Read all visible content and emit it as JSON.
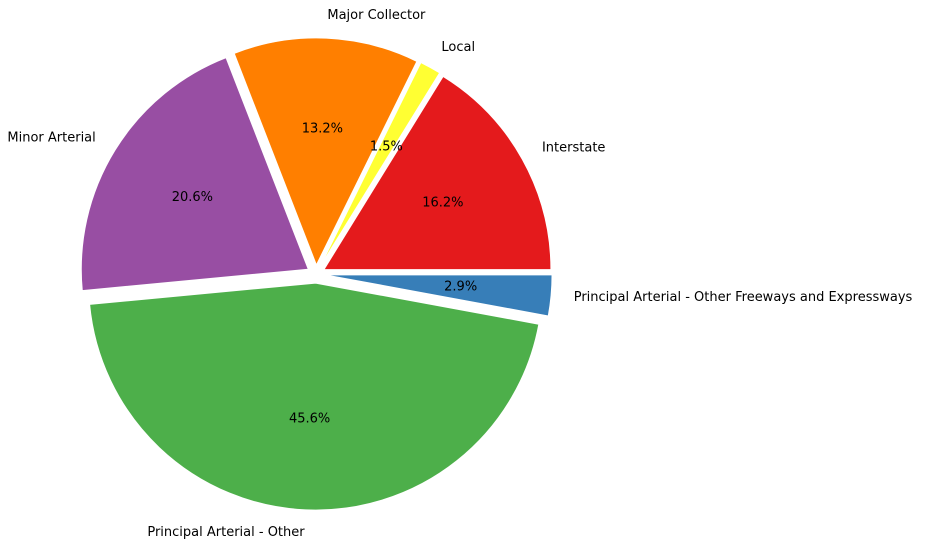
{
  "chart_data": {
    "type": "pie",
    "title": "",
    "slices": [
      {
        "label": "Interstate",
        "value": 16.2,
        "pct_label": "16.2%",
        "color": "#e41a1c"
      },
      {
        "label": "Local",
        "value": 1.5,
        "pct_label": "1.5%",
        "color": "#ffff33"
      },
      {
        "label": "Major Collector",
        "value": 13.2,
        "pct_label": "13.2%",
        "color": "#ff7f00"
      },
      {
        "label": "Minor Arterial",
        "value": 20.6,
        "pct_label": "20.6%",
        "color": "#984ea3"
      },
      {
        "label": "Principal Arterial - Other",
        "value": 45.6,
        "pct_label": "45.6%",
        "color": "#4daf4a"
      },
      {
        "label": "Principal Arterial - Other Freeways and Expressways",
        "value": 2.9,
        "pct_label": "2.9%",
        "color": "#377eb8"
      }
    ],
    "start_angle_deg": 0,
    "direction": "counterclockwise",
    "exploded": true,
    "legend": "none"
  }
}
